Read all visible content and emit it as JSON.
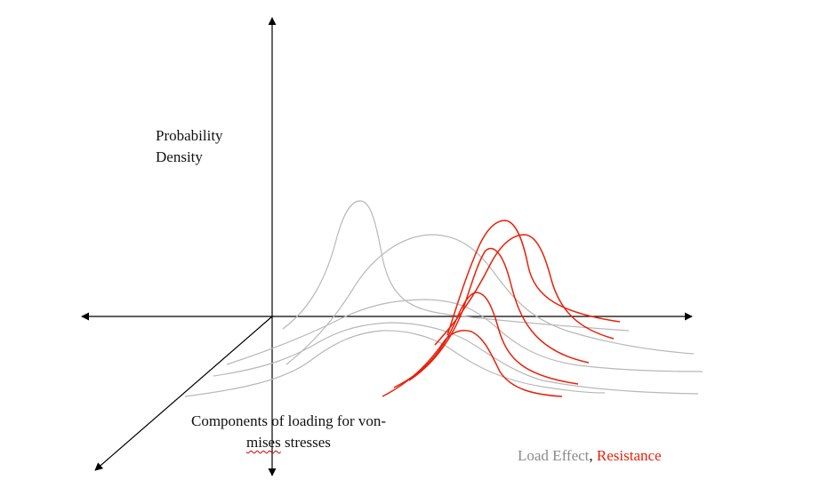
{
  "axis_labels": {
    "y_line1": "Probability",
    "y_line2": "Density",
    "x_line1": "Components of loading for von-",
    "x_line2_underlined": "mises",
    "x_line2_rest": " stresses"
  },
  "legend": {
    "load_effect": "Load Effect",
    "separator": ", ",
    "resistance": "Resistance"
  },
  "colors": {
    "axis": "#000000",
    "load_effect": "#b8b8b8",
    "resistance": "#e8200a",
    "text": "#111111",
    "spellcheck": "#d00000"
  }
}
